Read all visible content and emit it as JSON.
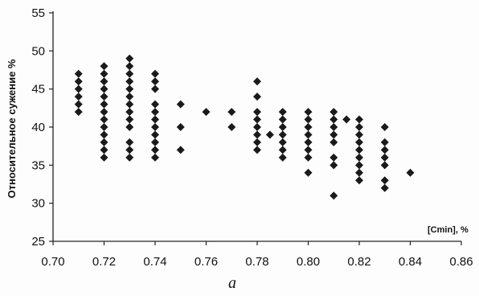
{
  "caption": "а",
  "chart_data": {
    "type": "scatter",
    "title": "",
    "xlabel": "[Cmin], %",
    "ylabel": "Относительное сужение %",
    "xlim": [
      0.7,
      0.86
    ],
    "ylim": [
      25,
      55
    ],
    "xticks": [
      "0.70",
      "0.72",
      "0.74",
      "0.76",
      "0.78",
      "0.80",
      "0.82",
      "0.84",
      "0.86"
    ],
    "yticks": [
      "25",
      "30",
      "35",
      "40",
      "45",
      "50",
      "55"
    ],
    "grid": false,
    "legend": "none",
    "marker": "diamond",
    "marker_color": "#1a1a1a",
    "points": [
      [
        0.71,
        47
      ],
      [
        0.71,
        46
      ],
      [
        0.71,
        45
      ],
      [
        0.71,
        44
      ],
      [
        0.71,
        43
      ],
      [
        0.71,
        42
      ],
      [
        0.72,
        48
      ],
      [
        0.72,
        47
      ],
      [
        0.72,
        46
      ],
      [
        0.72,
        45
      ],
      [
        0.72,
        44
      ],
      [
        0.72,
        43
      ],
      [
        0.72,
        42
      ],
      [
        0.72,
        41
      ],
      [
        0.72,
        40
      ],
      [
        0.72,
        39
      ],
      [
        0.72,
        38
      ],
      [
        0.72,
        37
      ],
      [
        0.72,
        36
      ],
      [
        0.73,
        49
      ],
      [
        0.73,
        48
      ],
      [
        0.73,
        47
      ],
      [
        0.73,
        46
      ],
      [
        0.73,
        45
      ],
      [
        0.73,
        44
      ],
      [
        0.73,
        43
      ],
      [
        0.73,
        42
      ],
      [
        0.73,
        41
      ],
      [
        0.73,
        40
      ],
      [
        0.73,
        38
      ],
      [
        0.73,
        37
      ],
      [
        0.73,
        36
      ],
      [
        0.74,
        47
      ],
      [
        0.74,
        46
      ],
      [
        0.74,
        45
      ],
      [
        0.74,
        43
      ],
      [
        0.74,
        42
      ],
      [
        0.74,
        41
      ],
      [
        0.74,
        40
      ],
      [
        0.74,
        39
      ],
      [
        0.74,
        38
      ],
      [
        0.74,
        37
      ],
      [
        0.74,
        36
      ],
      [
        0.75,
        43
      ],
      [
        0.75,
        40
      ],
      [
        0.75,
        37
      ],
      [
        0.76,
        42
      ],
      [
        0.77,
        42
      ],
      [
        0.77,
        40
      ],
      [
        0.78,
        46
      ],
      [
        0.78,
        44
      ],
      [
        0.78,
        42
      ],
      [
        0.78,
        41
      ],
      [
        0.78,
        40
      ],
      [
        0.78,
        39
      ],
      [
        0.78,
        38
      ],
      [
        0.78,
        37
      ],
      [
        0.785,
        39
      ],
      [
        0.79,
        42
      ],
      [
        0.79,
        41
      ],
      [
        0.79,
        40
      ],
      [
        0.79,
        39
      ],
      [
        0.79,
        38
      ],
      [
        0.79,
        37
      ],
      [
        0.79,
        36
      ],
      [
        0.8,
        42
      ],
      [
        0.8,
        41
      ],
      [
        0.8,
        40
      ],
      [
        0.8,
        39
      ],
      [
        0.8,
        38
      ],
      [
        0.8,
        37
      ],
      [
        0.8,
        36
      ],
      [
        0.8,
        34
      ],
      [
        0.81,
        42
      ],
      [
        0.81,
        41
      ],
      [
        0.81,
        40
      ],
      [
        0.81,
        39
      ],
      [
        0.81,
        38
      ],
      [
        0.81,
        36
      ],
      [
        0.81,
        35
      ],
      [
        0.81,
        31
      ],
      [
        0.815,
        41
      ],
      [
        0.82,
        41
      ],
      [
        0.82,
        40
      ],
      [
        0.82,
        39
      ],
      [
        0.82,
        38
      ],
      [
        0.82,
        37
      ],
      [
        0.82,
        36
      ],
      [
        0.82,
        35
      ],
      [
        0.82,
        34
      ],
      [
        0.82,
        33
      ],
      [
        0.83,
        40
      ],
      [
        0.83,
        38
      ],
      [
        0.83,
        37
      ],
      [
        0.83,
        36
      ],
      [
        0.83,
        35
      ],
      [
        0.83,
        33
      ],
      [
        0.83,
        32
      ],
      [
        0.84,
        34
      ]
    ]
  }
}
